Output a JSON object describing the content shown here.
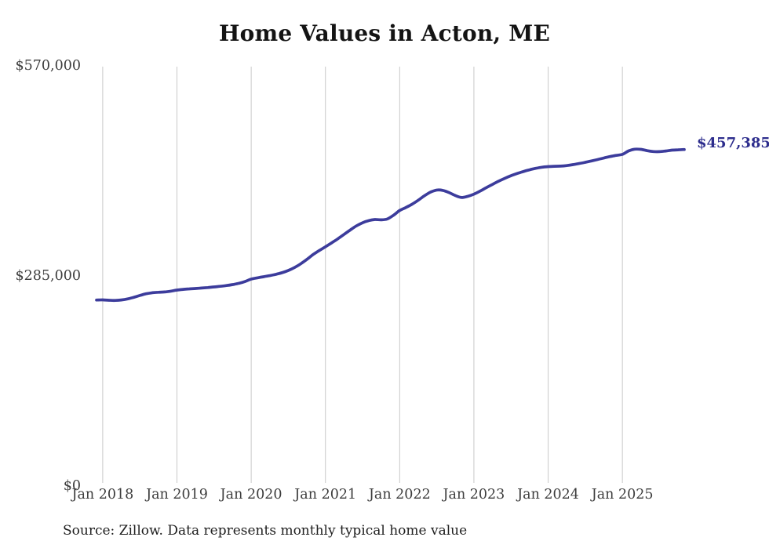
{
  "chart_data": {
    "type": "line",
    "title": "Home Values in Acton, ME",
    "xlabel": "",
    "ylabel": "",
    "ylim": [
      0,
      570000
    ],
    "grid": "vertical-yearly-gridlines",
    "legend_position": "none",
    "line_color": "#3c3c9c",
    "end_label": "$457,385",
    "end_value": 457385,
    "y_ticks": [
      {
        "value": 0,
        "label": "$0"
      },
      {
        "value": 285000,
        "label": "$285,000"
      },
      {
        "value": 570000,
        "label": "$570,000"
      }
    ],
    "x_ticks": [
      "Jan 2018",
      "Jan 2019",
      "Jan 2020",
      "Jan 2021",
      "Jan 2022",
      "Jan 2023",
      "Jan 2024",
      "Jan 2025"
    ],
    "series": [
      {
        "name": "Monthly typical home value",
        "x": [
          "Dec 2017",
          "Jan 2018",
          "Feb 2018",
          "Mar 2018",
          "Apr 2018",
          "May 2018",
          "Jun 2018",
          "Jul 2018",
          "Aug 2018",
          "Sep 2018",
          "Oct 2018",
          "Nov 2018",
          "Dec 2018",
          "Jan 2019",
          "Feb 2019",
          "Mar 2019",
          "Apr 2019",
          "May 2019",
          "Jun 2019",
          "Jul 2019",
          "Aug 2019",
          "Sep 2019",
          "Oct 2019",
          "Nov 2019",
          "Dec 2019",
          "Jan 2020",
          "Feb 2020",
          "Mar 2020",
          "Apr 2020",
          "May 2020",
          "Jun 2020",
          "Jul 2020",
          "Aug 2020",
          "Sep 2020",
          "Oct 2020",
          "Nov 2020",
          "Dec 2020",
          "Jan 2021",
          "Feb 2021",
          "Mar 2021",
          "Apr 2021",
          "May 2021",
          "Jun 2021",
          "Jul 2021",
          "Aug 2021",
          "Sep 2021",
          "Oct 2021",
          "Nov 2021",
          "Dec 2021",
          "Jan 2022",
          "Feb 2022",
          "Mar 2022",
          "Apr 2022",
          "May 2022",
          "Jun 2022",
          "Jul 2022",
          "Aug 2022",
          "Sep 2022",
          "Oct 2022",
          "Nov 2022",
          "Dec 2022",
          "Jan 2023",
          "Feb 2023",
          "Mar 2023",
          "Apr 2023",
          "May 2023",
          "Jun 2023",
          "Jul 2023",
          "Aug 2023",
          "Sep 2023",
          "Oct 2023",
          "Nov 2023",
          "Dec 2023",
          "Jan 2024",
          "Feb 2024",
          "Mar 2024",
          "Apr 2024",
          "May 2024",
          "Jun 2024",
          "Jul 2024",
          "Aug 2024",
          "Sep 2024",
          "Oct 2024",
          "Nov 2024",
          "Dec 2024",
          "Jan 2025",
          "Feb 2025",
          "Mar 2025",
          "Apr 2025",
          "May 2025",
          "Jun 2025",
          "Jul 2025",
          "Aug 2025",
          "Sep 2025",
          "Oct 2025",
          "Nov 2025"
        ],
        "values": [
          252800,
          253000,
          252500,
          252300,
          252900,
          254300,
          256500,
          259000,
          261300,
          262700,
          263400,
          263800,
          264900,
          266400,
          267300,
          268000,
          268500,
          269100,
          269800,
          270600,
          271500,
          272500,
          273800,
          275500,
          278000,
          281300,
          283000,
          284500,
          286000,
          287800,
          290000,
          293000,
          297000,
          302000,
          308000,
          314500,
          320000,
          325200,
          330500,
          336000,
          342000,
          348000,
          353500,
          357800,
          360800,
          362200,
          361800,
          363000,
          368000,
          374500,
          378500,
          383000,
          388500,
          394500,
          399500,
          402300,
          401800,
          398800,
          394800,
          392200,
          393800,
          396700,
          400800,
          405500,
          410000,
          414300,
          418300,
          421800,
          424800,
          427500,
          429800,
          431800,
          433300,
          434200,
          434600,
          434800,
          435500,
          436800,
          438300,
          440000,
          441800,
          443800,
          445800,
          447800,
          449400,
          450800,
          455500,
          457800,
          457600,
          455800,
          454600,
          454500,
          455400,
          456500,
          457000,
          457385
        ]
      }
    ],
    "source_note": "Source: Zillow. Data represents monthly typical home value"
  }
}
